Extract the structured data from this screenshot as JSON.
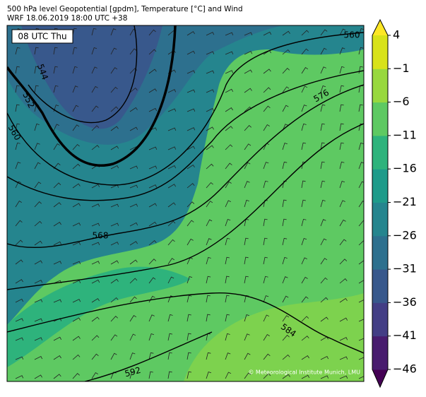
{
  "header": {
    "title": "500 hPa level Geopotential [gpdm], Temperature [°C] and Wind",
    "subtitle": "WRF 18.06.2019 18:00 UTC +38"
  },
  "map": {
    "time_label": "08 UTC Thu",
    "credit": "© Meteorological Institute Munich, LMU",
    "contour_labels": [
      544,
      552,
      560,
      560,
      568,
      576,
      584,
      592
    ]
  },
  "colorbar": {
    "ticks": [
      4,
      {
        "value": -1,
        "label": "−1"
      },
      {
        "value": -6,
        "label": "−6"
      },
      {
        "value": -11,
        "label": "−11"
      },
      {
        "value": -16,
        "label": "−16"
      },
      {
        "value": -21,
        "label": "−21"
      },
      {
        "value": -26,
        "label": "−26"
      },
      {
        "value": -31,
        "label": "−31"
      },
      {
        "value": -36,
        "label": "−36"
      },
      {
        "value": -41,
        "label": "−41"
      },
      {
        "value": -46,
        "label": "−46"
      }
    ],
    "colors": [
      "#440154",
      "#481c6e",
      "#433e85",
      "#38588c",
      "#2d708e",
      "#25858e",
      "#1e9b8a",
      "#2eb37c",
      "#5ec962",
      "#98d83e",
      "#d8e219",
      "#fde725"
    ]
  }
}
